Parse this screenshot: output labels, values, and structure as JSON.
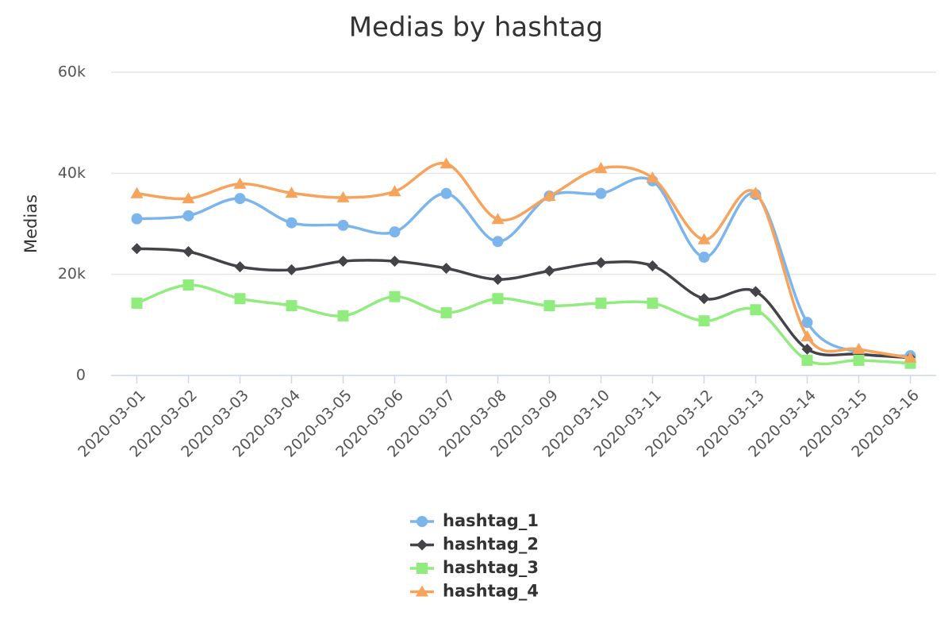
{
  "chart_data": {
    "type": "line",
    "title": "Medias by hashtag",
    "y_label": "Medias",
    "categories": [
      "2020-03-01",
      "2020-03-02",
      "2020-03-03",
      "2020-03-04",
      "2020-03-05",
      "2020-03-06",
      "2020-03-07",
      "2020-03-08",
      "2020-03-09",
      "2020-03-10",
      "2020-03-11",
      "2020-03-12",
      "2020-03-13",
      "2020-03-14",
      "2020-03-15",
      "2020-03-16"
    ],
    "ylim": [
      0,
      60000
    ],
    "yticks": [
      0,
      {
        "value": 20000,
        "label": "20k"
      },
      {
        "value": 40000,
        "label": "40k"
      },
      {
        "value": 60000,
        "label": "60k"
      }
    ],
    "grid": true,
    "smooth": true,
    "legend": "bottom",
    "series": [
      {
        "name": "hashtag_1",
        "color": "#7cb5ec",
        "symbol": "circle",
        "values": [
          31000,
          31600,
          35000,
          30200,
          29700,
          28400,
          36000,
          26500,
          35500,
          36000,
          38500,
          23400,
          35800,
          10500,
          4500,
          3900
        ]
      },
      {
        "name": "hashtag_2",
        "color": "#434348",
        "symbol": "diamond",
        "values": [
          25100,
          24500,
          21500,
          20900,
          22600,
          22600,
          21200,
          19000,
          20700,
          22300,
          21700,
          15200,
          16600,
          5200,
          4200,
          3500
        ]
      },
      {
        "name": "hashtag_3",
        "color": "#90ed7d",
        "symbol": "square",
        "values": [
          14300,
          17900,
          15200,
          13800,
          11800,
          15600,
          12400,
          15200,
          13800,
          14300,
          14300,
          10800,
          13000,
          3000,
          3000,
          2400
        ]
      },
      {
        "name": "hashtag_4",
        "color": "#f7a35c",
        "symbol": "triangle",
        "values": [
          36000,
          35000,
          37900,
          36100,
          35200,
          36400,
          41900,
          30900,
          35500,
          41000,
          39100,
          26900,
          36100,
          7700,
          5200,
          3500
        ]
      }
    ]
  }
}
